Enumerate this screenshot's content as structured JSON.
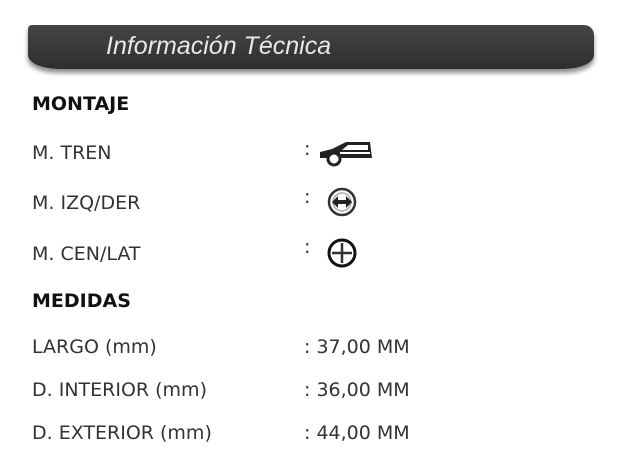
{
  "header": {
    "title": "Información Técnica"
  },
  "montaje": {
    "heading": "MONTAJE",
    "rows": [
      {
        "label": "M. TREN",
        "separator": ":",
        "icon": "car-front-icon"
      },
      {
        "label": "M. IZQ/DER",
        "separator": ":",
        "icon": "left-right-arrow-circle-icon"
      },
      {
        "label": "M. CEN/LAT",
        "separator": ":",
        "icon": "crosshair-circle-icon"
      }
    ]
  },
  "medidas": {
    "heading": "MEDIDAS",
    "rows": [
      {
        "label": "LARGO (mm)",
        "value": ": 37,00 MM"
      },
      {
        "label": "D. INTERIOR (mm)",
        "value": ": 36,00 MM"
      },
      {
        "label": "D. EXTERIOR (mm)",
        "value": ": 44,00 MM"
      }
    ]
  }
}
